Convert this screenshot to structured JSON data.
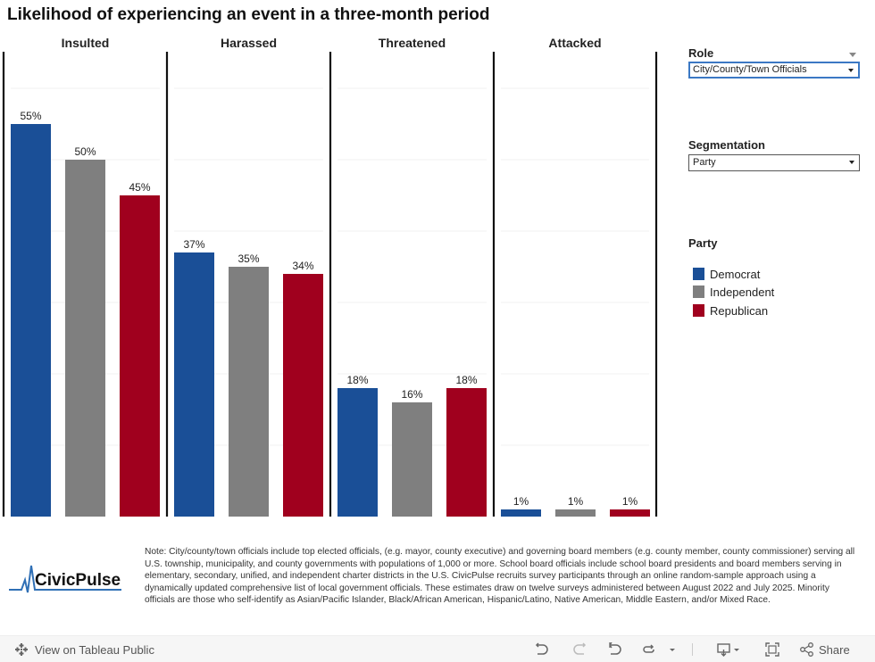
{
  "title": "Likelihood of experiencing an event in a three-month period",
  "chart_data": {
    "type": "bar",
    "title": "Likelihood of experiencing an event in a three-month period",
    "panels": [
      "Insulted",
      "Harassed",
      "Threatened",
      "Attacked"
    ],
    "categories": [
      "Insulted",
      "Harassed",
      "Threatened",
      "Attacked"
    ],
    "series": [
      {
        "name": "Democrat",
        "color": "#1a4f97",
        "values": [
          55,
          37,
          18,
          1
        ]
      },
      {
        "name": "Independent",
        "color": "#7f7f7f",
        "values": [
          50,
          35,
          16,
          1
        ]
      },
      {
        "name": "Republican",
        "color": "#a0001e",
        "values": [
          45,
          34,
          18,
          1
        ]
      }
    ],
    "value_suffix": "%",
    "xlabel": "",
    "ylabel": "",
    "ylim": [
      0,
      65
    ],
    "gridlines": [
      10,
      20,
      30,
      40,
      50,
      60
    ],
    "grid": true,
    "legend_position": "right"
  },
  "filters": {
    "role": {
      "label": "Role",
      "value": "City/County/Town Officials"
    },
    "segmentation": {
      "label": "Segmentation",
      "value": "Party"
    }
  },
  "legend": {
    "title": "Party",
    "items": [
      {
        "label": "Democrat",
        "color": "#1a4f97"
      },
      {
        "label": "Independent",
        "color": "#7f7f7f"
      },
      {
        "label": "Republican",
        "color": "#a0001e"
      }
    ]
  },
  "logo": {
    "text": "CivicPulse"
  },
  "note": "Note: City/county/town officials include top elected officials, (e.g. mayor, county executive) and governing board members (e.g. county member, county commissioner) serving all U.S. township, municipality, and county governments with populations of 1,000 or more. School board officials include school board presidents and board members serving in elementary, secondary, unified, and independent charter districts in the U.S. CivicPulse recruits survey participants through an online random-sample approach using a dynamically updated comprehensive list of local government officials. These estimates draw on twelve surveys administered between August 2022 and July 2025. Minority officials are those who self-identify as Asian/Pacific Islander, Black/African American, Hispanic/Latino, Native American, Middle Eastern, and/or Mixed Race.",
  "footer": {
    "view_label": "View on Tableau Public",
    "share_label": "Share",
    "icons": [
      "undo-icon",
      "redo-icon",
      "revert-icon",
      "refresh-icon",
      "download-icon",
      "fullscreen-icon",
      "share-icon"
    ]
  }
}
